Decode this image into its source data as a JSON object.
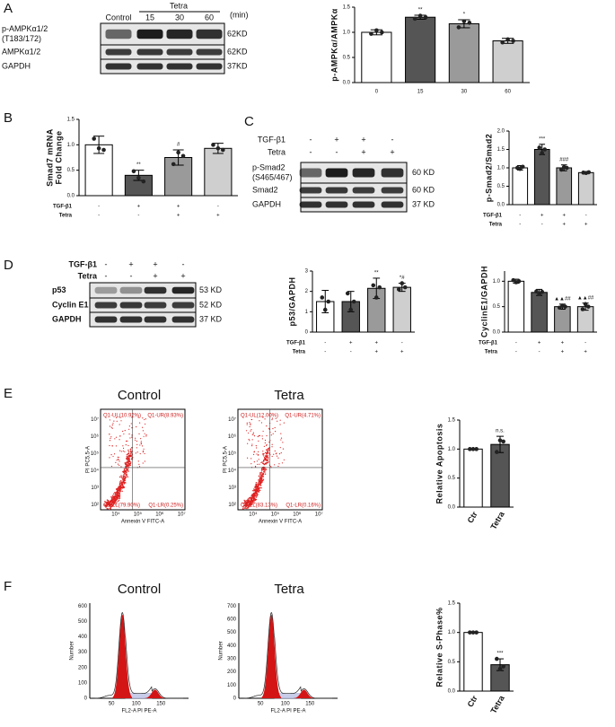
{
  "letters": [
    "A",
    "B",
    "C",
    "D",
    "E",
    "F"
  ],
  "blots": [
    {
      "header": "Tetra",
      "lanes": [
        "Control",
        "15",
        "30",
        "60"
      ],
      "unit": "(min)",
      "rows": [
        {
          "name": [
            "p-AMPKα1/2",
            "(T183/172)"
          ],
          "size": "62KD"
        },
        {
          "name": [
            "AMPKα1/2"
          ],
          "size": "62KD"
        },
        {
          "name": [
            "GAPDH"
          ],
          "size": "37KD"
        }
      ]
    },
    {
      "conditions": [
        {
          "label": "TGF-β1",
          "signs": [
            "-",
            "+",
            "+",
            "-"
          ]
        },
        {
          "label": "Tetra",
          "signs": [
            "-",
            "-",
            "+",
            "+"
          ]
        }
      ],
      "rows": [
        {
          "name": [
            "p-Smad2",
            "(S465/467)"
          ],
          "size": "60 KD"
        },
        {
          "name": [
            "Smad2"
          ],
          "size": "60 KD"
        },
        {
          "name": [
            "GAPDH"
          ],
          "size": "37 KD"
        }
      ]
    },
    {
      "conditions": [
        {
          "label": "TGF-β1",
          "signs": [
            "-",
            "+",
            "+",
            "-"
          ]
        },
        {
          "label": "Tetra",
          "signs": [
            "-",
            "-",
            "+",
            "+"
          ]
        }
      ],
      "rows": [
        {
          "name": [
            "p53"
          ],
          "size": "53 KD"
        },
        {
          "name": [
            "Cyclin E1"
          ],
          "size": "52 KD"
        },
        {
          "name": [
            "GAPDH"
          ],
          "size": "37 KD"
        }
      ]
    }
  ],
  "flow": {
    "apoptosis": [
      {
        "title": "Control",
        "quadrants": [
          "Q1-UL(10.92%)",
          "Q1-UR(8.93%)",
          "Q1-LL(79.90%)",
          "Q1-LR(0.25%)"
        ],
        "ylabel": "PI PC5.5-A",
        "xlabel": "Annexin V FITC-A",
        "xticks": [
          "10⁴",
          "10⁵",
          "10⁶",
          "10⁷"
        ],
        "yticks": [
          "10²",
          "10³",
          "10⁴",
          "10⁵",
          "10⁶",
          "10⁷"
        ]
      },
      {
        "title": "Tetra",
        "quadrants": [
          "Q1-UL(12.00%)",
          "Q1-UR(4.71%)",
          "Q1-LL(83.13%)",
          "Q1-LR(0.16%)"
        ],
        "ylabel": "PI PC5.5-A",
        "xlabel": "Annexin V FITC-A",
        "xticks": [
          "10⁴",
          "10⁵",
          "10⁶",
          "10⁷"
        ],
        "yticks": [
          "10²",
          "10³",
          "10⁴",
          "10⁵",
          "10⁶",
          "10⁷"
        ]
      }
    ],
    "cycle": [
      {
        "title": "Control",
        "ylabel": "Number",
        "xlabel": "FL2-A PI PE-A",
        "yticks": [
          "0",
          "100",
          "200",
          "300",
          "400",
          "500",
          "600"
        ],
        "xticks": [
          "50",
          "100",
          "150"
        ]
      },
      {
        "title": "Tetra",
        "ylabel": "Number",
        "xlabel": "FL2-A PI PE-A",
        "yticks": [
          "0",
          "100",
          "200",
          "300",
          "400",
          "500",
          "600",
          "700"
        ],
        "xticks": [
          "50",
          "100",
          "150"
        ]
      }
    ]
  },
  "chart_data": [
    {
      "type": "bar",
      "ylabel": "p-AMPKα/AMPKα",
      "categories": [
        "0",
        "15",
        "30",
        "60"
      ],
      "values": [
        1.0,
        1.3,
        1.17,
        0.83
      ],
      "errors": [
        0.05,
        0.04,
        0.08,
        0.05
      ],
      "points": [
        [
          0.97,
          1.04,
          1.0
        ],
        [
          1.27,
          1.33,
          1.3
        ],
        [
          1.1,
          1.22,
          1.19
        ],
        [
          0.8,
          0.86,
          0.83
        ]
      ],
      "annotations": [
        null,
        "**",
        "*",
        null
      ],
      "colors": [
        "#ffffff",
        "#555555",
        "#9a9a9a",
        "#cfcfcf"
      ],
      "ylim": [
        0,
        1.5
      ],
      "yticks": [
        {
          "value": 0,
          "label": "0.0"
        },
        {
          "value": 0.5,
          "label": "0.5"
        },
        {
          "value": 1,
          "label": "1.0"
        },
        {
          "value": 1.5,
          "label": "1.5"
        }
      ]
    },
    {
      "type": "bar",
      "ylabel": [
        "Smad7 mRNA",
        "Fold Change"
      ],
      "values": [
        1.0,
        0.4,
        0.75,
        0.93
      ],
      "errors": [
        0.17,
        0.1,
        0.15,
        0.1
      ],
      "points": [
        [
          1.12,
          0.93,
          0.9
        ],
        [
          0.48,
          0.35,
          0.28
        ],
        [
          0.62,
          0.85,
          0.78
        ],
        [
          1.0,
          0.93,
          0.9
        ]
      ],
      "annotations": [
        null,
        "**",
        "#",
        null
      ],
      "conditions": [
        {
          "label": "TGF-β1",
          "signs": [
            "-",
            "+",
            "+",
            "-"
          ]
        },
        {
          "label": "Tetra",
          "signs": [
            "-",
            "-",
            "+",
            "+"
          ]
        }
      ],
      "colors": [
        "#ffffff",
        "#555555",
        "#9a9a9a",
        "#cfcfcf"
      ],
      "ylim": [
        0,
        1.5
      ],
      "yticks": [
        {
          "value": 0,
          "label": "0.0"
        },
        {
          "value": 0.5,
          "label": "0.5"
        },
        {
          "value": 1,
          "label": "1.0"
        },
        {
          "value": 1.5,
          "label": "1.5"
        }
      ]
    },
    {
      "type": "bar",
      "ylabel": "p-Smad2/Smad2",
      "values": [
        1.0,
        1.5,
        1.0,
        0.87
      ],
      "errors": [
        0.06,
        0.14,
        0.08,
        0.03
      ],
      "points": [
        [
          1.0,
          0.97,
          1.03
        ],
        [
          1.55,
          1.4,
          1.5
        ],
        [
          0.95,
          1.02,
          1.0
        ],
        [
          0.87,
          0.86,
          0.88
        ]
      ],
      "annotations": [
        null,
        "***",
        "###",
        null
      ],
      "conditions": [
        {
          "label": "TGF-β1",
          "signs": [
            "-",
            "+",
            "+",
            "-"
          ]
        },
        {
          "label": "Tetra",
          "signs": [
            "-",
            "-",
            "+",
            "+"
          ]
        }
      ],
      "colors": [
        "#ffffff",
        "#555555",
        "#9a9a9a",
        "#cfcfcf"
      ],
      "ylim": [
        0,
        2
      ],
      "yticks": [
        {
          "value": 0,
          "label": "0.0"
        },
        {
          "value": 0.5,
          "label": "0.5"
        },
        {
          "value": 1,
          "label": "1.0"
        },
        {
          "value": 1.5,
          "label": "1.5"
        },
        {
          "value": 2,
          "label": "2.0"
        }
      ]
    },
    {
      "type": "bar",
      "ylabel": "p53/GAPDH",
      "values": [
        1.5,
        1.5,
        2.15,
        2.2
      ],
      "errors": [
        0.55,
        0.5,
        0.5,
        0.2
      ],
      "points": [
        [
          1.7,
          1.1,
          1.5
        ],
        [
          1.9,
          1.1,
          1.5
        ],
        [
          2.3,
          1.7,
          2.2
        ],
        [
          2.1,
          2.4,
          2.2
        ]
      ],
      "annotations": [
        null,
        null,
        "**",
        "*#"
      ],
      "conditions": [
        {
          "label": "TGF-β1",
          "signs": [
            "-",
            "+",
            "+",
            "-"
          ]
        },
        {
          "label": "Tetra",
          "signs": [
            "-",
            "-",
            "+",
            "+"
          ]
        }
      ],
      "colors": [
        "#ffffff",
        "#555555",
        "#9a9a9a",
        "#cfcfcf"
      ],
      "ylim": [
        0,
        3
      ],
      "yticks": [
        0,
        1,
        2,
        3
      ]
    },
    {
      "type": "bar",
      "ylabel": "CyclinE1/GAPDH",
      "values": [
        1.0,
        0.78,
        0.5,
        0.5
      ],
      "errors": [
        0.04,
        0.06,
        0.05,
        0.07
      ],
      "points": [
        [
          1.02,
          0.98,
          1.0
        ],
        [
          0.8,
          0.75,
          0.79
        ],
        [
          0.48,
          0.52,
          0.5
        ],
        [
          0.45,
          0.55,
          0.5
        ]
      ],
      "annotations": [
        null,
        null,
        "▲▲##",
        "▲▲##"
      ],
      "conditions": [
        {
          "label": "TGF-β1",
          "signs": [
            "-",
            "+",
            "+",
            "-"
          ]
        },
        {
          "label": "Tetra",
          "signs": [
            "-",
            "-",
            "+",
            "+"
          ]
        }
      ],
      "colors": [
        "#ffffff",
        "#555555",
        "#9a9a9a",
        "#cfcfcf"
      ],
      "ylim": [
        0,
        1.2
      ],
      "yticks": [
        {
          "value": 0,
          "label": "0.0"
        },
        {
          "value": 0.5,
          "label": "0.5"
        },
        {
          "value": 1,
          "label": "1.0"
        }
      ]
    },
    {
      "type": "bar",
      "ylabel": "Relative Apoptosis",
      "categories": [
        "Ctr",
        "Tetra"
      ],
      "values": [
        1.0,
        1.08
      ],
      "errors": [
        0.0,
        0.14
      ],
      "points": [
        [
          1.0,
          1.0,
          1.0
        ],
        [
          0.95,
          1.15,
          1.13
        ]
      ],
      "annotations": [
        null,
        "n.s."
      ],
      "colors": [
        "#ffffff",
        "#555555"
      ],
      "ylim": [
        0,
        1.5
      ],
      "yticks": [
        {
          "value": 0,
          "label": "0.0"
        },
        {
          "value": 0.5,
          "label": "0.5"
        },
        {
          "value": 1,
          "label": "1.0"
        },
        {
          "value": 1.5,
          "label": "1.5"
        }
      ]
    },
    {
      "type": "bar",
      "ylabel": "Relative S-Phase%",
      "categories": [
        "Ctr",
        "Tetra"
      ],
      "values": [
        1.0,
        0.45
      ],
      "errors": [
        0.0,
        0.1
      ],
      "points": [
        [
          1.0,
          1.0,
          1.0
        ],
        [
          0.55,
          0.38,
          0.42
        ]
      ],
      "annotations": [
        null,
        "***"
      ],
      "colors": [
        "#ffffff",
        "#555555"
      ],
      "ylim": [
        0,
        1.5
      ],
      "yticks": [
        {
          "value": 0,
          "label": "0.0"
        },
        {
          "value": 0.5,
          "label": "0.5"
        },
        {
          "value": 1,
          "label": "1.0"
        },
        {
          "value": 1.5,
          "label": "1.5"
        }
      ]
    }
  ]
}
